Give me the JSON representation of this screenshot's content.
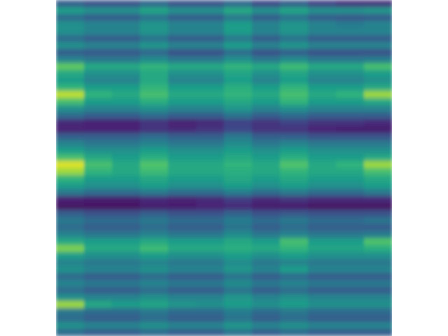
{
  "chart_data": {
    "type": "heatmap",
    "color": "viridis",
    "tick_labels": false,
    "zlim": [
      0,
      1
    ],
    "cells": [
      [
        0.3,
        0.25,
        0.25,
        0.33,
        0.25,
        0.25,
        0.33,
        0.22,
        0.3,
        0.2,
        0.15,
        0.15
      ],
      [
        0.55,
        0.5,
        0.5,
        0.58,
        0.5,
        0.5,
        0.6,
        0.5,
        0.58,
        0.5,
        0.5,
        0.52
      ],
      [
        0.35,
        0.3,
        0.3,
        0.38,
        0.3,
        0.3,
        0.4,
        0.3,
        0.38,
        0.3,
        0.28,
        0.3
      ],
      [
        0.5,
        0.45,
        0.45,
        0.52,
        0.45,
        0.45,
        0.55,
        0.45,
        0.52,
        0.45,
        0.42,
        0.45
      ],
      [
        0.5,
        0.45,
        0.45,
        0.52,
        0.45,
        0.45,
        0.55,
        0.45,
        0.52,
        0.45,
        0.45,
        0.45
      ],
      [
        0.35,
        0.3,
        0.3,
        0.38,
        0.3,
        0.3,
        0.4,
        0.3,
        0.38,
        0.3,
        0.3,
        0.3
      ],
      [
        0.5,
        0.45,
        0.45,
        0.52,
        0.45,
        0.45,
        0.55,
        0.45,
        0.52,
        0.45,
        0.45,
        0.45
      ],
      [
        0.3,
        0.28,
        0.28,
        0.33,
        0.25,
        0.25,
        0.35,
        0.25,
        0.3,
        0.25,
        0.25,
        0.25
      ],
      [
        0.45,
        0.4,
        0.4,
        0.48,
        0.4,
        0.4,
        0.5,
        0.4,
        0.48,
        0.4,
        0.4,
        0.42
      ],
      [
        0.75,
        0.6,
        0.6,
        0.65,
        0.6,
        0.6,
        0.65,
        0.6,
        0.68,
        0.6,
        0.6,
        0.7
      ],
      [
        0.6,
        0.5,
        0.5,
        0.6,
        0.5,
        0.5,
        0.58,
        0.5,
        0.58,
        0.5,
        0.5,
        0.55
      ],
      [
        0.55,
        0.45,
        0.45,
        0.6,
        0.45,
        0.45,
        0.55,
        0.45,
        0.55,
        0.45,
        0.45,
        0.5
      ],
      [
        0.65,
        0.55,
        0.55,
        0.65,
        0.55,
        0.55,
        0.62,
        0.55,
        0.65,
        0.55,
        0.55,
        0.6
      ],
      [
        0.9,
        0.65,
        0.6,
        0.7,
        0.6,
        0.6,
        0.65,
        0.6,
        0.7,
        0.6,
        0.65,
        0.85
      ],
      [
        0.7,
        0.55,
        0.55,
        0.62,
        0.55,
        0.55,
        0.6,
        0.55,
        0.65,
        0.55,
        0.55,
        0.6
      ],
      [
        0.5,
        0.45,
        0.45,
        0.5,
        0.45,
        0.45,
        0.52,
        0.45,
        0.5,
        0.45,
        0.45,
        0.45
      ],
      [
        0.35,
        0.3,
        0.3,
        0.35,
        0.3,
        0.3,
        0.38,
        0.3,
        0.35,
        0.3,
        0.3,
        0.3
      ],
      [
        0.12,
        0.1,
        0.1,
        0.15,
        0.1,
        0.12,
        0.2,
        0.15,
        0.2,
        0.15,
        0.15,
        0.12
      ],
      [
        0.1,
        0.1,
        0.1,
        0.15,
        0.12,
        0.15,
        0.22,
        0.15,
        0.15,
        0.1,
        0.08,
        0.08
      ],
      [
        0.3,
        0.3,
        0.3,
        0.35,
        0.3,
        0.3,
        0.4,
        0.3,
        0.3,
        0.25,
        0.25,
        0.25
      ],
      [
        0.45,
        0.4,
        0.4,
        0.45,
        0.4,
        0.4,
        0.48,
        0.4,
        0.45,
        0.4,
        0.4,
        0.4
      ],
      [
        0.55,
        0.5,
        0.5,
        0.55,
        0.5,
        0.5,
        0.55,
        0.5,
        0.55,
        0.5,
        0.5,
        0.5
      ],
      [
        0.7,
        0.6,
        0.55,
        0.62,
        0.55,
        0.55,
        0.6,
        0.55,
        0.62,
        0.55,
        0.55,
        0.6
      ],
      [
        0.95,
        0.7,
        0.6,
        0.72,
        0.6,
        0.6,
        0.65,
        0.6,
        0.72,
        0.6,
        0.65,
        0.85
      ],
      [
        0.85,
        0.65,
        0.6,
        0.68,
        0.6,
        0.6,
        0.62,
        0.6,
        0.65,
        0.6,
        0.6,
        0.7
      ],
      [
        0.65,
        0.55,
        0.55,
        0.6,
        0.55,
        0.55,
        0.6,
        0.55,
        0.6,
        0.55,
        0.55,
        0.6
      ],
      [
        0.55,
        0.5,
        0.5,
        0.55,
        0.5,
        0.5,
        0.55,
        0.5,
        0.55,
        0.5,
        0.5,
        0.55
      ],
      [
        0.4,
        0.35,
        0.35,
        0.4,
        0.35,
        0.35,
        0.42,
        0.35,
        0.4,
        0.35,
        0.35,
        0.4
      ],
      [
        0.1,
        0.08,
        0.08,
        0.12,
        0.1,
        0.12,
        0.18,
        0.12,
        0.15,
        0.12,
        0.12,
        0.12
      ],
      [
        0.05,
        0.05,
        0.05,
        0.08,
        0.08,
        0.1,
        0.12,
        0.08,
        0.08,
        0.05,
        0.05,
        0.05
      ],
      [
        0.3,
        0.25,
        0.25,
        0.3,
        0.25,
        0.25,
        0.32,
        0.25,
        0.28,
        0.25,
        0.25,
        0.25
      ],
      [
        0.4,
        0.35,
        0.35,
        0.4,
        0.35,
        0.35,
        0.42,
        0.35,
        0.4,
        0.35,
        0.35,
        0.38
      ],
      [
        0.35,
        0.3,
        0.3,
        0.35,
        0.3,
        0.3,
        0.38,
        0.3,
        0.35,
        0.3,
        0.3,
        0.3
      ],
      [
        0.45,
        0.4,
        0.4,
        0.45,
        0.4,
        0.4,
        0.48,
        0.4,
        0.45,
        0.4,
        0.4,
        0.42
      ],
      [
        0.6,
        0.55,
        0.55,
        0.6,
        0.55,
        0.55,
        0.6,
        0.55,
        0.7,
        0.55,
        0.55,
        0.72
      ],
      [
        0.8,
        0.6,
        0.6,
        0.68,
        0.6,
        0.6,
        0.62,
        0.6,
        0.65,
        0.58,
        0.58,
        0.62
      ],
      [
        0.55,
        0.5,
        0.5,
        0.55,
        0.5,
        0.5,
        0.55,
        0.5,
        0.55,
        0.5,
        0.5,
        0.5
      ],
      [
        0.45,
        0.4,
        0.4,
        0.45,
        0.4,
        0.4,
        0.48,
        0.4,
        0.45,
        0.4,
        0.4,
        0.4
      ],
      [
        0.5,
        0.45,
        0.45,
        0.5,
        0.45,
        0.45,
        0.52,
        0.45,
        0.55,
        0.45,
        0.45,
        0.45
      ],
      [
        0.35,
        0.3,
        0.3,
        0.35,
        0.3,
        0.3,
        0.38,
        0.3,
        0.35,
        0.3,
        0.3,
        0.3
      ],
      [
        0.45,
        0.4,
        0.4,
        0.45,
        0.4,
        0.4,
        0.48,
        0.4,
        0.45,
        0.4,
        0.4,
        0.4
      ],
      [
        0.35,
        0.3,
        0.3,
        0.35,
        0.3,
        0.3,
        0.38,
        0.3,
        0.35,
        0.3,
        0.3,
        0.3
      ],
      [
        0.5,
        0.45,
        0.45,
        0.5,
        0.45,
        0.45,
        0.52,
        0.45,
        0.5,
        0.45,
        0.45,
        0.45
      ],
      [
        0.85,
        0.6,
        0.55,
        0.58,
        0.52,
        0.5,
        0.55,
        0.5,
        0.55,
        0.5,
        0.5,
        0.5
      ],
      [
        0.4,
        0.35,
        0.35,
        0.4,
        0.35,
        0.35,
        0.42,
        0.35,
        0.4,
        0.35,
        0.35,
        0.35
      ],
      [
        0.35,
        0.3,
        0.3,
        0.35,
        0.3,
        0.3,
        0.38,
        0.3,
        0.35,
        0.3,
        0.3,
        0.3
      ],
      [
        0.5,
        0.45,
        0.45,
        0.5,
        0.45,
        0.45,
        0.52,
        0.45,
        0.5,
        0.45,
        0.45,
        0.45
      ],
      [
        0.35,
        0.3,
        0.3,
        0.35,
        0.3,
        0.3,
        0.38,
        0.3,
        0.35,
        0.3,
        0.3,
        0.3
      ]
    ]
  }
}
